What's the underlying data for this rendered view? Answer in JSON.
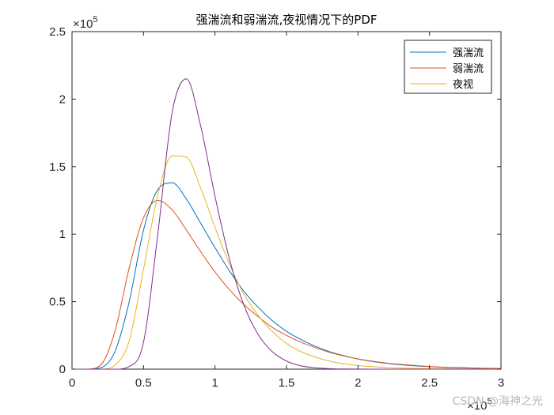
{
  "chart_data": {
    "type": "line",
    "title": "强湍流和弱湍流,夜视情况下的PDF",
    "xlabel": "",
    "ylabel": "",
    "xlim": [
      0,
      300000
    ],
    "ylim": [
      0,
      250000
    ],
    "x_ticks": [
      0,
      0.5,
      1,
      1.5,
      2,
      2.5,
      3
    ],
    "x_tick_labels": [
      "0",
      "0.5",
      "1",
      "1.5",
      "2",
      "2.5",
      "3"
    ],
    "y_ticks": [
      0,
      0.5,
      1,
      1.5,
      2,
      2.5
    ],
    "y_tick_labels": [
      "0",
      "0.5",
      "1",
      "1.5",
      "2",
      "2.5"
    ],
    "x_exponent_label": "×10",
    "x_exponent_power": "5",
    "y_exponent_label": "×10",
    "y_exponent_power": "5",
    "grid": false,
    "legend_position": "top-right",
    "x": [
      0,
      10000,
      20000,
      30000,
      40000,
      50000,
      60000,
      70000,
      80000,
      90000,
      100000,
      110000,
      120000,
      130000,
      140000,
      150000,
      160000,
      170000,
      180000,
      190000,
      200000,
      210000,
      220000,
      230000,
      240000,
      250000,
      260000,
      270000,
      280000,
      290000,
      300000
    ],
    "series": [
      {
        "name": "强湍流",
        "color": "#0072BD",
        "values": [
          0,
          0,
          1000,
          13000,
          50000,
          103000,
          133000,
          138000,
          126000,
          108000,
          90000,
          73000,
          58000,
          46000,
          36000,
          28000,
          22000,
          17000,
          13000,
          10000,
          7500,
          5700,
          4300,
          3200,
          2400,
          1800,
          1300,
          1000,
          700,
          500,
          400
        ]
      },
      {
        "name": "弱湍流",
        "color": "#D95319",
        "values": [
          0,
          0,
          3000,
          28000,
          75000,
          112000,
          125000,
          118000,
          103000,
          87000,
          72000,
          59000,
          48000,
          39000,
          31000,
          25000,
          20000,
          16000,
          12500,
          9800,
          7600,
          5900,
          4500,
          3500,
          2700,
          2000,
          1500,
          1150,
          850,
          650,
          500
        ]
      },
      {
        "name": "夜视",
        "color": "#EDB120",
        "values": [
          0,
          0,
          0,
          3000,
          21000,
          74000,
          129000,
          158000,
          157000,
          134000,
          105000,
          78000,
          56000,
          40000,
          28000,
          19000,
          13000,
          9000,
          6000,
          4000,
          2700,
          1800,
          1200,
          800,
          500,
          350,
          230,
          150,
          100,
          60,
          40
        ]
      },
      {
        "name": "",
        "color": "#7E2F8E",
        "values": [
          0,
          0,
          0,
          0,
          2000,
          20000,
          100000,
          190000,
          215000,
          180000,
          128000,
          82000,
          48000,
          26000,
          13000,
          6000,
          2500,
          1000,
          400,
          150,
          60,
          20,
          0,
          0,
          0,
          0,
          0,
          0,
          0,
          0,
          0
        ]
      }
    ]
  },
  "watermark": "CSDN @海神之光"
}
